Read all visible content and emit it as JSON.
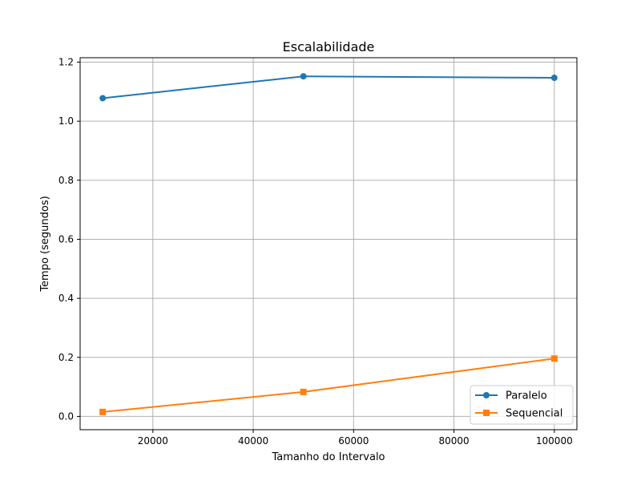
{
  "chart_data": {
    "type": "line",
    "title": "Escalabilidade",
    "xlabel": "Tamanho do Intervalo",
    "ylabel": "Tempo (segundos)",
    "x": [
      10000,
      50000,
      100000
    ],
    "series": [
      {
        "name": "Paralelo",
        "values": [
          1.078,
          1.152,
          1.147
        ],
        "color": "#1f77b4",
        "marker": "circle"
      },
      {
        "name": "Sequencial",
        "values": [
          0.015,
          0.083,
          0.196
        ],
        "color": "#ff7f0e",
        "marker": "square"
      }
    ],
    "xlim": [
      5500,
      104500
    ],
    "ylim": [
      -0.045,
      1.215
    ],
    "xticks": [
      20000,
      40000,
      60000,
      80000,
      100000
    ],
    "xtick_labels": [
      "20000",
      "40000",
      "60000",
      "80000",
      "100000"
    ],
    "yticks": [
      0.0,
      0.2,
      0.4,
      0.6,
      0.8,
      1.0,
      1.2
    ],
    "ytick_labels": [
      "0.0",
      "0.2",
      "0.4",
      "0.6",
      "0.8",
      "1.0",
      "1.2"
    ],
    "grid": true,
    "legend_position": "lower-right"
  }
}
